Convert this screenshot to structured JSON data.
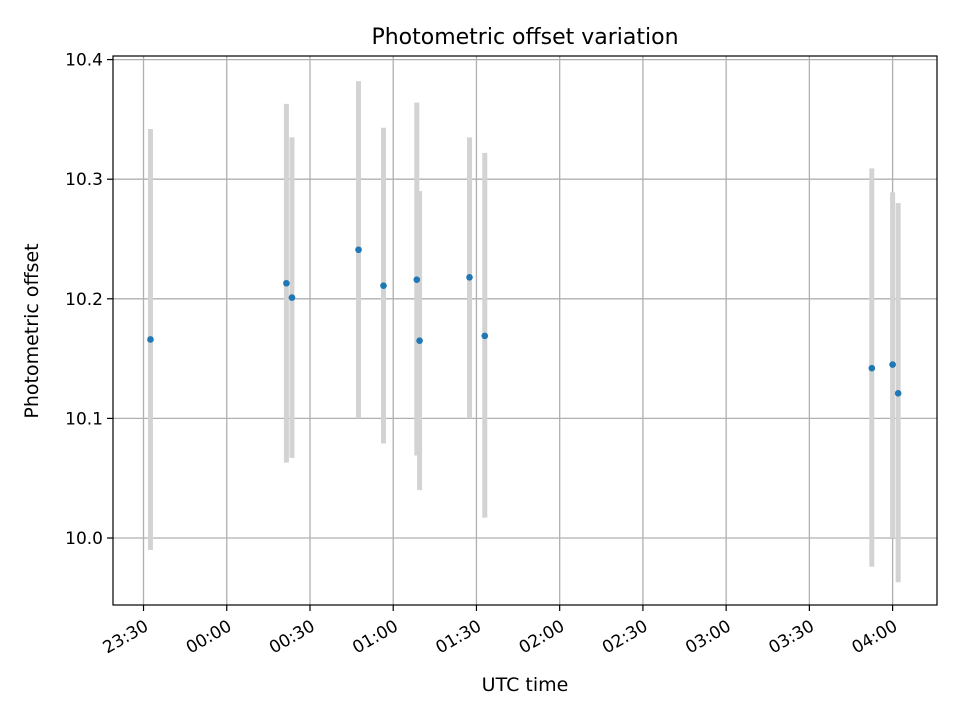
{
  "chart_data": {
    "type": "scatter",
    "title": "Photometric offset variation",
    "xlabel": "UTC time",
    "ylabel": "Photometric offset",
    "x_axis_kind": "time",
    "xlim": [
      "23:19",
      "04:16"
    ],
    "ylim": [
      9.944,
      10.403
    ],
    "x_ticks": [
      "23:30",
      "00:00",
      "00:30",
      "01:00",
      "01:30",
      "02:00",
      "02:30",
      "03:00",
      "03:30",
      "04:00"
    ],
    "y_ticks": [
      "10.0",
      "10.1",
      "10.2",
      "10.3",
      "10.4"
    ],
    "y_tick_values": [
      10.0,
      10.1,
      10.2,
      10.3,
      10.4
    ],
    "grid": true,
    "colors": {
      "points": "#1f77b4",
      "errorbars": "#d3d3d3",
      "grid": "#b0b0b0"
    },
    "points": [
      {
        "time": "23:32:30",
        "y": 10.166,
        "ylo": 9.99,
        "yhi": 10.342
      },
      {
        "time": "00:21:30",
        "y": 10.213,
        "ylo": 10.063,
        "yhi": 10.363
      },
      {
        "time": "00:23:30",
        "y": 10.201,
        "ylo": 10.067,
        "yhi": 10.335
      },
      {
        "time": "00:47:30",
        "y": 10.241,
        "ylo": 10.1,
        "yhi": 10.382
      },
      {
        "time": "00:56:30",
        "y": 10.211,
        "ylo": 10.079,
        "yhi": 10.343
      },
      {
        "time": "01:08:30",
        "y": 10.216,
        "ylo": 10.069,
        "yhi": 10.364
      },
      {
        "time": "01:09:30",
        "y": 10.165,
        "ylo": 10.04,
        "yhi": 10.29
      },
      {
        "time": "01:27:30",
        "y": 10.218,
        "ylo": 10.1,
        "yhi": 10.335
      },
      {
        "time": "01:33:00",
        "y": 10.169,
        "ylo": 10.017,
        "yhi": 10.322
      },
      {
        "time": "03:52:30",
        "y": 10.142,
        "ylo": 9.976,
        "yhi": 10.309
      },
      {
        "time": "04:00:00",
        "y": 10.145,
        "ylo": 10.0,
        "yhi": 10.289
      },
      {
        "time": "04:02:00",
        "y": 10.121,
        "ylo": 9.963,
        "yhi": 10.28
      }
    ]
  }
}
